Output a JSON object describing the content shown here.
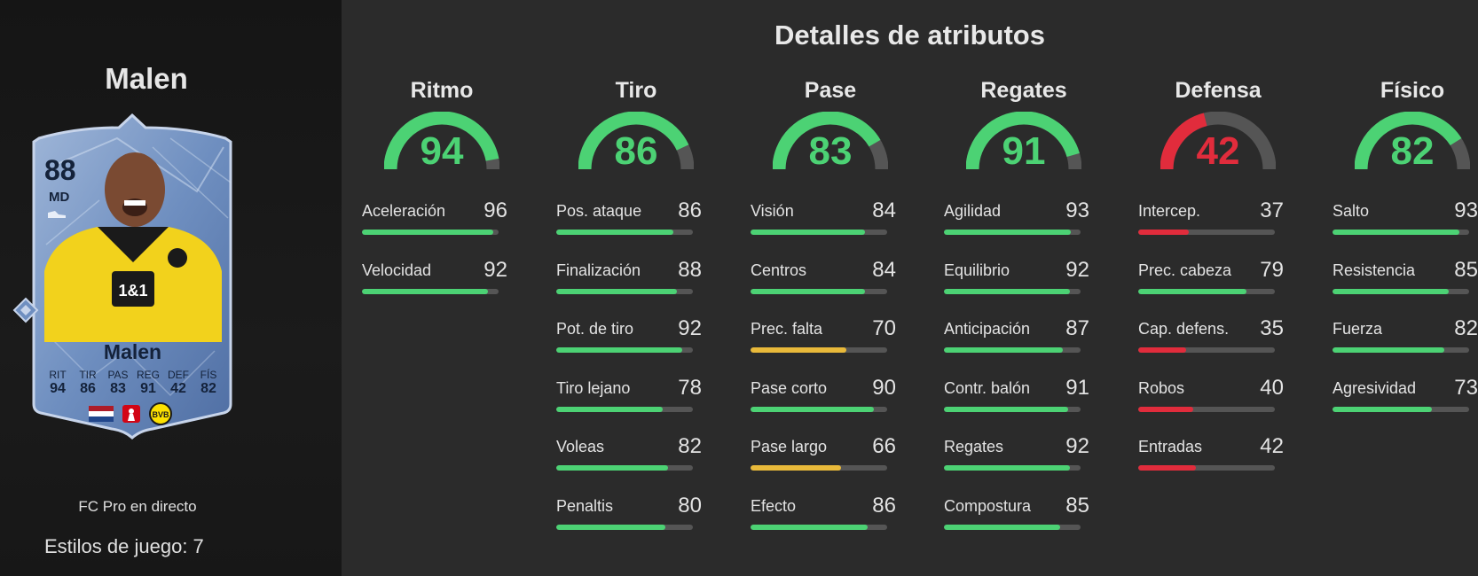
{
  "player": {
    "name": "Malen",
    "card": {
      "rating": "88",
      "position": "MD",
      "name": "Malen",
      "stats": [
        {
          "label": "RIT",
          "value": "94"
        },
        {
          "label": "TIR",
          "value": "86"
        },
        {
          "label": "PAS",
          "value": "83"
        },
        {
          "label": "REG",
          "value": "91"
        },
        {
          "label": "DEF",
          "value": "42"
        },
        {
          "label": "FÍS",
          "value": "82"
        }
      ]
    },
    "card_type": "FC Pro en directo",
    "playstyles": "Estilos de juego: 7"
  },
  "title": "Detalles de atributos",
  "colors": {
    "green": "#4cd274",
    "yellow": "#e8b93a",
    "red": "#e12c3c",
    "track": "#555555"
  },
  "categories": [
    {
      "name": "Ritmo",
      "value": 94,
      "color": "#4cd274",
      "stats": [
        {
          "name": "Aceleración",
          "value": 96,
          "color": "#4cd274"
        },
        {
          "name": "Velocidad",
          "value": 92,
          "color": "#4cd274"
        }
      ]
    },
    {
      "name": "Tiro",
      "value": 86,
      "color": "#4cd274",
      "stats": [
        {
          "name": "Pos. ataque",
          "value": 86,
          "color": "#4cd274"
        },
        {
          "name": "Finalización",
          "value": 88,
          "color": "#4cd274"
        },
        {
          "name": "Pot. de tiro",
          "value": 92,
          "color": "#4cd274"
        },
        {
          "name": "Tiro lejano",
          "value": 78,
          "color": "#4cd274"
        },
        {
          "name": "Voleas",
          "value": 82,
          "color": "#4cd274"
        },
        {
          "name": "Penaltis",
          "value": 80,
          "color": "#4cd274"
        }
      ]
    },
    {
      "name": "Pase",
      "value": 83,
      "color": "#4cd274",
      "stats": [
        {
          "name": "Visión",
          "value": 84,
          "color": "#4cd274"
        },
        {
          "name": "Centros",
          "value": 84,
          "color": "#4cd274"
        },
        {
          "name": "Prec. falta",
          "value": 70,
          "color": "#e8b93a"
        },
        {
          "name": "Pase corto",
          "value": 90,
          "color": "#4cd274"
        },
        {
          "name": "Pase largo",
          "value": 66,
          "color": "#e8b93a"
        },
        {
          "name": "Efecto",
          "value": 86,
          "color": "#4cd274"
        }
      ]
    },
    {
      "name": "Regates",
      "value": 91,
      "color": "#4cd274",
      "stats": [
        {
          "name": "Agilidad",
          "value": 93,
          "color": "#4cd274"
        },
        {
          "name": "Equilibrio",
          "value": 92,
          "color": "#4cd274"
        },
        {
          "name": "Anticipación",
          "value": 87,
          "color": "#4cd274"
        },
        {
          "name": "Contr. balón",
          "value": 91,
          "color": "#4cd274"
        },
        {
          "name": "Regates",
          "value": 92,
          "color": "#4cd274"
        },
        {
          "name": "Compostura",
          "value": 85,
          "color": "#4cd274"
        }
      ]
    },
    {
      "name": "Defensa",
      "value": 42,
      "color": "#e12c3c",
      "stats": [
        {
          "name": "Intercep.",
          "value": 37,
          "color": "#e12c3c"
        },
        {
          "name": "Prec. cabeza",
          "value": 79,
          "color": "#4cd274"
        },
        {
          "name": "Cap. defens.",
          "value": 35,
          "color": "#e12c3c"
        },
        {
          "name": "Robos",
          "value": 40,
          "color": "#e12c3c"
        },
        {
          "name": "Entradas",
          "value": 42,
          "color": "#e12c3c"
        }
      ]
    },
    {
      "name": "Físico",
      "value": 82,
      "color": "#4cd274",
      "stats": [
        {
          "name": "Salto",
          "value": 93,
          "color": "#4cd274"
        },
        {
          "name": "Resistencia",
          "value": 85,
          "color": "#4cd274"
        },
        {
          "name": "Fuerza",
          "value": 82,
          "color": "#4cd274"
        },
        {
          "name": "Agresividad",
          "value": 73,
          "color": "#4cd274"
        }
      ]
    }
  ]
}
